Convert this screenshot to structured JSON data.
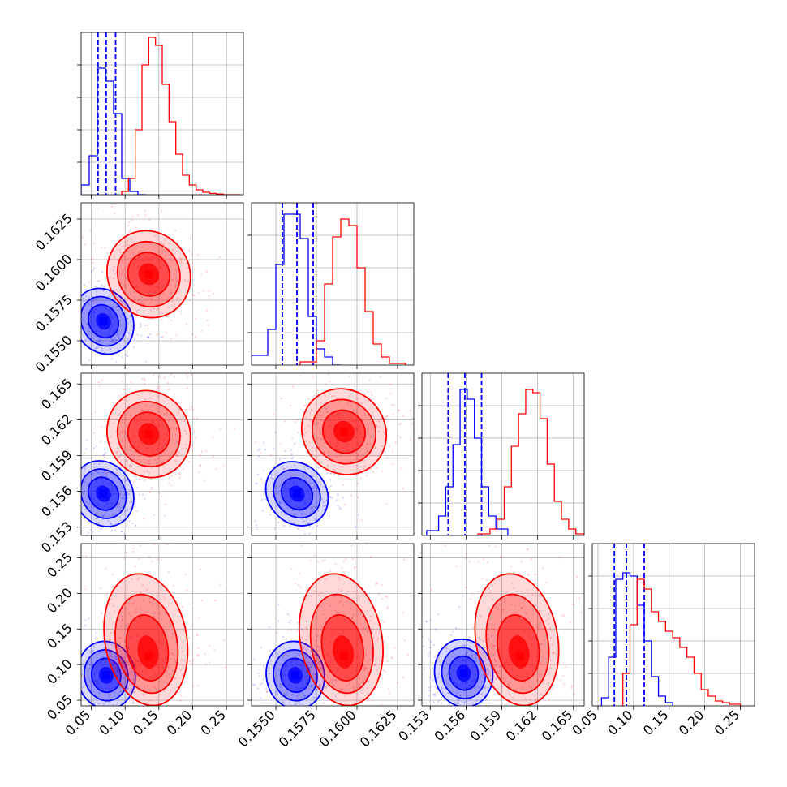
{
  "chart_data": {
    "type": "corner",
    "title": "",
    "grid": true,
    "parameters": [
      {
        "xlim": [
          0.035,
          0.275
        ],
        "ticks": [
          0.05,
          0.1,
          0.15,
          0.2,
          0.25
        ],
        "tick_labels": [
          "0.05",
          "0.10",
          "0.15",
          "0.20",
          "0.25"
        ]
      },
      {
        "xlim": [
          0.1535,
          0.1635
        ],
        "ticks": [
          0.155,
          0.1575,
          0.16,
          0.1625
        ],
        "tick_labels": [
          "0.1550",
          "0.1575",
          "0.1600",
          "0.1625"
        ]
      },
      {
        "xlim": [
          0.1523,
          0.1659
        ],
        "ticks": [
          0.153,
          0.156,
          0.159,
          0.162,
          0.165
        ],
        "tick_labels": [
          "0.153",
          "0.156",
          "0.159",
          "0.162",
          "0.165"
        ]
      },
      {
        "xlim": [
          0.042,
          0.27
        ],
        "ticks": [
          0.05,
          0.1,
          0.15,
          0.2,
          0.25
        ],
        "tick_labels": [
          "0.05",
          "0.10",
          "0.15",
          "0.20",
          "0.25"
        ]
      }
    ],
    "series": [
      {
        "color": "#0000ff",
        "quantiles": [
          [
            0.06,
            0.072,
            0.086
          ],
          [
            0.1554,
            0.1563,
            0.1573
          ],
          [
            0.1545,
            0.1559,
            0.1573
          ],
          [
            0.073,
            0.09,
            0.115
          ]
        ],
        "histograms": [
          {
            "edges": [
              0.035,
              0.047,
              0.059,
              0.071,
              0.083,
              0.095,
              0.107,
              0.119,
              0.131
            ],
            "counts": [
              0.06,
              0.24,
              0.78,
              0.7,
              0.5,
              0.1,
              0.02,
              0.0
            ]
          },
          {
            "edges": [
              0.1535,
              0.1545,
              0.155,
              0.1555,
              0.156,
              0.1565,
              0.157,
              0.1575,
              0.158,
              0.1585,
              0.159
            ],
            "counts": [
              0.06,
              0.22,
              0.62,
              0.93,
              0.93,
              0.78,
              0.3,
              0.1,
              0.05,
              0.0
            ]
          },
          {
            "edges": [
              0.1527,
              0.1537,
              0.1543,
              0.1549,
              0.1555,
              0.1561,
              0.1567,
              0.1573,
              0.1579,
              0.1585,
              0.1595
            ],
            "counts": [
              0.03,
              0.12,
              0.3,
              0.56,
              0.9,
              0.84,
              0.6,
              0.3,
              0.12,
              0.04
            ]
          },
          {
            "edges": [
              0.055,
              0.065,
              0.075,
              0.085,
              0.095,
              0.105,
              0.115,
              0.125,
              0.135,
              0.145,
              0.155
            ],
            "counts": [
              0.05,
              0.3,
              0.78,
              0.82,
              0.8,
              0.62,
              0.4,
              0.18,
              0.06,
              0.02
            ]
          }
        ],
        "peaks": [
          {
            "pair": [
              0,
              1
            ],
            "center": [
              0.068,
              0.1562
            ]
          },
          {
            "pair": [
              0,
              2
            ],
            "center": [
              0.068,
              0.1558
            ]
          },
          {
            "pair": [
              1,
              2
            ],
            "center": [
              0.1563,
              0.1558
            ]
          },
          {
            "pair": [
              0,
              3
            ],
            "center": [
              0.072,
              0.085
            ]
          },
          {
            "pair": [
              1,
              3
            ],
            "center": [
              0.1562,
              0.085
            ]
          },
          {
            "pair": [
              2,
              3
            ],
            "center": [
              0.1558,
              0.088
            ]
          }
        ]
      },
      {
        "color": "#ff0000",
        "quantiles": [],
        "histograms": [
          {
            "edges": [
              0.095,
              0.105,
              0.115,
              0.125,
              0.135,
              0.145,
              0.155,
              0.165,
              0.175,
              0.185,
              0.195,
              0.205,
              0.215,
              0.225,
              0.235,
              0.245,
              0.27
            ],
            "counts": [
              0.02,
              0.1,
              0.4,
              0.8,
              0.97,
              0.92,
              0.68,
              0.45,
              0.25,
              0.12,
              0.06,
              0.03,
              0.015,
              0.008,
              0.004,
              0.0
            ]
          },
          {
            "edges": [
              0.1565,
              0.1575,
              0.158,
              0.1585,
              0.159,
              0.1595,
              0.16,
              0.1605,
              0.161,
              0.1615,
              0.162,
              0.163
            ],
            "counts": [
              0.02,
              0.15,
              0.5,
              0.79,
              0.9,
              0.86,
              0.6,
              0.33,
              0.13,
              0.05,
              0.01
            ]
          },
          {
            "edges": [
              0.157,
              0.158,
              0.1586,
              0.1592,
              0.1598,
              0.1604,
              0.161,
              0.1616,
              0.1622,
              0.1628,
              0.1634,
              0.164,
              0.1646,
              0.1652,
              0.1659
            ],
            "counts": [
              0.01,
              0.04,
              0.1,
              0.3,
              0.55,
              0.75,
              0.9,
              0.88,
              0.72,
              0.44,
              0.21,
              0.1,
              0.04,
              0.01
            ]
          },
          {
            "edges": [
              0.085,
              0.095,
              0.105,
              0.115,
              0.125,
              0.135,
              0.145,
              0.155,
              0.165,
              0.175,
              0.185,
              0.195,
              0.205,
              0.215,
              0.225,
              0.235,
              0.25
            ],
            "counts": [
              0.2,
              0.5,
              0.78,
              0.72,
              0.58,
              0.52,
              0.46,
              0.42,
              0.36,
              0.3,
              0.2,
              0.1,
              0.06,
              0.03,
              0.02,
              0.01
            ]
          }
        ],
        "peaks": [
          {
            "pair": [
              0,
              1
            ],
            "center": [
              0.135,
              0.1591
            ]
          },
          {
            "pair": [
              0,
              2
            ],
            "center": [
              0.135,
              0.1608
            ]
          },
          {
            "pair": [
              1,
              2
            ],
            "center": [
              0.1592,
              0.161
            ]
          },
          {
            "pair": [
              0,
              3
            ],
            "center": [
              0.135,
              0.112
            ]
          },
          {
            "pair": [
              1,
              3
            ],
            "center": [
              0.1592,
              0.112
            ]
          },
          {
            "pair": [
              2,
              3
            ],
            "center": [
              0.1605,
              0.112
            ]
          }
        ]
      }
    ]
  }
}
